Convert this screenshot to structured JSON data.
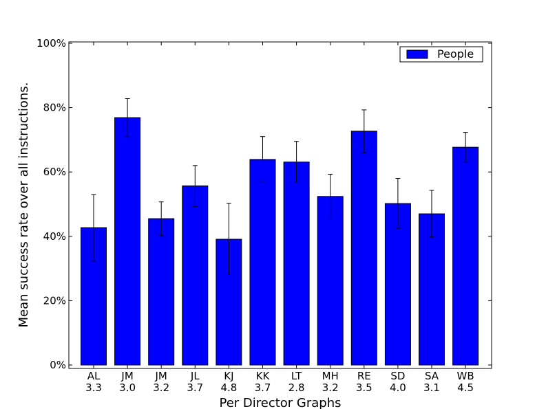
{
  "chart_data": {
    "type": "bar",
    "categories": [
      "AL\n3.3",
      "JM\n3.0",
      "JM\n3.2",
      "JL\n3.7",
      "KJ\n4.8",
      "KK\n3.7",
      "LT\n2.8",
      "MH\n3.2",
      "RE\n3.5",
      "SD\n4.0",
      "SA\n3.1",
      "WB\n4.5"
    ],
    "series": [
      {
        "name": "People",
        "color": "#0000ff",
        "values": [
          42.7,
          76.9,
          45.5,
          55.7,
          39.1,
          63.9,
          63.1,
          52.4,
          72.7,
          50.2,
          47.0,
          67.7
        ],
        "error_low": [
          32.3,
          70.9,
          40.2,
          49.3,
          28.1,
          57.1,
          56.7,
          45.6,
          66.0,
          42.5,
          39.8,
          63.1
        ],
        "error_high": [
          53.0,
          82.8,
          50.7,
          62.0,
          50.3,
          71.0,
          69.5,
          59.3,
          79.3,
          58.0,
          54.3,
          72.3
        ]
      }
    ],
    "title": "",
    "xlabel": "Per Director Graphs",
    "ylabel": "Mean success rate over all instructions.",
    "ylim": [
      0,
      100
    ],
    "yticks": [
      0,
      20,
      40,
      60,
      80,
      100
    ],
    "ytick_labels": [
      "0%",
      "20%",
      "40%",
      "60%",
      "80%",
      "100%"
    ],
    "grid": false,
    "legend_position": "top-right"
  }
}
